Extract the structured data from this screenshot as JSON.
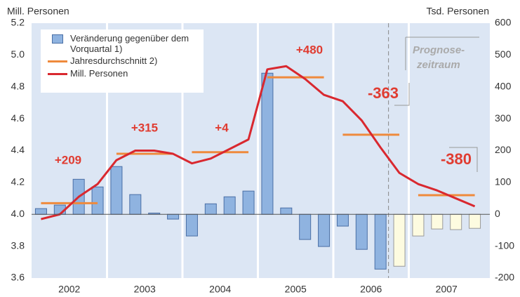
{
  "chart_data": {
    "type": "bar_line",
    "y_label": "Mill. Personen",
    "y2_label": "Tsd. Personen",
    "years": [
      "2002",
      "2003",
      "2004",
      "2005",
      "2006",
      "2007"
    ],
    "ylim": [
      3.6,
      5.2
    ],
    "yticks": [
      {
        "value": 5.2,
        "label": "5.2"
      },
      {
        "value": 5,
        "label": "5.0"
      },
      {
        "value": 4.8,
        "label": "4.8"
      },
      {
        "value": 4.6,
        "label": "4.6"
      },
      {
        "value": 4.4,
        "label": "4.4"
      },
      {
        "value": 4.2,
        "label": "4.2"
      },
      {
        "value": 4,
        "label": "4.0"
      },
      {
        "value": 3.8,
        "label": "3.8"
      },
      {
        "value": 3.6,
        "label": "3.6"
      }
    ],
    "y2lim": [
      -200,
      600
    ],
    "y2ticks": [
      600,
      500,
      400,
      300,
      200,
      100,
      0,
      -100,
      -200
    ],
    "series": [
      {
        "name": "Veränderung gegenüber dem Vorquartal 1)",
        "type": "bar",
        "axis": "y2",
        "color": "#8fb3e0",
        "values": [
          18,
          29,
          110,
          86,
          150,
          62,
          4,
          -15,
          -68,
          33,
          55,
          73,
          443,
          20,
          -79,
          -101,
          -37,
          -110,
          -172,
          -163,
          -68,
          -46,
          -48,
          -44
        ],
        "colors": [
          "#8fb3e0",
          "#8fb3e0",
          "#8fb3e0",
          "#8fb3e0",
          "#8fb3e0",
          "#8fb3e0",
          "#8fb3e0",
          "#8fb3e0",
          "#8fb3e0",
          "#8fb3e0",
          "#8fb3e0",
          "#8fb3e0",
          "#8fb3e0",
          "#8fb3e0",
          "#8fb3e0",
          "#8fb3e0",
          "#8fb3e0",
          "#8fb3e0",
          "#8fb3e0",
          "#fdfbe0",
          "#fdfbe0",
          "#fdfbe0",
          "#fdfbe0",
          "#fdfbe0"
        ]
      },
      {
        "name": "Jahresdurchschnitt 2)",
        "type": "annual",
        "color": "#ef8a3c",
        "values": [
          4.07,
          4.38,
          4.39,
          4.86,
          4.5,
          4.12
        ]
      },
      {
        "name": "Mill. Personen",
        "type": "line",
        "color": "#d9282f",
        "values": [
          3.97,
          4.0,
          4.11,
          4.19,
          4.34,
          4.4,
          4.4,
          4.38,
          4.32,
          4.35,
          4.41,
          4.47,
          4.91,
          4.93,
          4.85,
          4.75,
          4.71,
          4.59,
          4.42,
          4.26,
          4.19,
          4.15,
          4.1,
          4.05
        ]
      }
    ],
    "annotations": [
      "+209",
      "+315",
      "+4",
      "+480",
      "-363",
      "-380"
    ],
    "forecast_label": [
      "Prognose-",
      "zeitraum"
    ]
  }
}
